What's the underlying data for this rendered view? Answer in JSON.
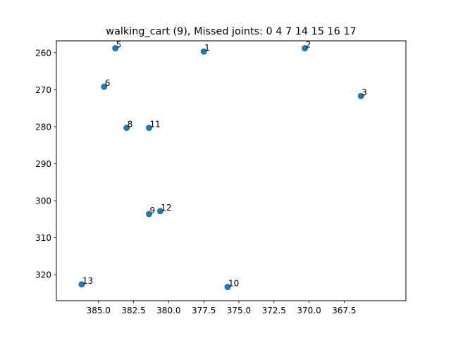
{
  "chart_data": {
    "type": "scatter",
    "title": "walking_cart (9), Missed joints: 0 4 7 14 15 16 17",
    "xlabel": "",
    "ylabel": "",
    "x_inverted": true,
    "y_inverted": true,
    "xlim": [
      388.0,
      363.1
    ],
    "ylim": [
      327.0,
      256.8
    ],
    "x_ticks": [
      385.0,
      382.5,
      380.0,
      377.5,
      375.0,
      372.5,
      370.0,
      367.5
    ],
    "x_tick_labels": [
      "385.0",
      "382.5",
      "380.0",
      "377.5",
      "375.0",
      "372.5",
      "370.0",
      "367.5"
    ],
    "y_ticks": [
      260,
      270,
      280,
      290,
      300,
      310,
      320
    ],
    "y_tick_labels": [
      "260",
      "270",
      "280",
      "290",
      "300",
      "310",
      "320"
    ],
    "grid": false,
    "marker_color": "#1f77b4",
    "points": [
      {
        "label": "1",
        "x": 377.5,
        "y": 259.7
      },
      {
        "label": "2",
        "x": 370.3,
        "y": 258.8
      },
      {
        "label": "3",
        "x": 366.3,
        "y": 271.7
      },
      {
        "label": "5",
        "x": 383.8,
        "y": 258.8
      },
      {
        "label": "6",
        "x": 384.6,
        "y": 269.2
      },
      {
        "label": "8",
        "x": 383.0,
        "y": 280.3
      },
      {
        "label": "9",
        "x": 381.4,
        "y": 303.6
      },
      {
        "label": "10",
        "x": 375.8,
        "y": 323.3
      },
      {
        "label": "11",
        "x": 381.4,
        "y": 280.3
      },
      {
        "label": "12",
        "x": 380.6,
        "y": 302.8
      },
      {
        "label": "13",
        "x": 386.2,
        "y": 322.6
      }
    ]
  }
}
